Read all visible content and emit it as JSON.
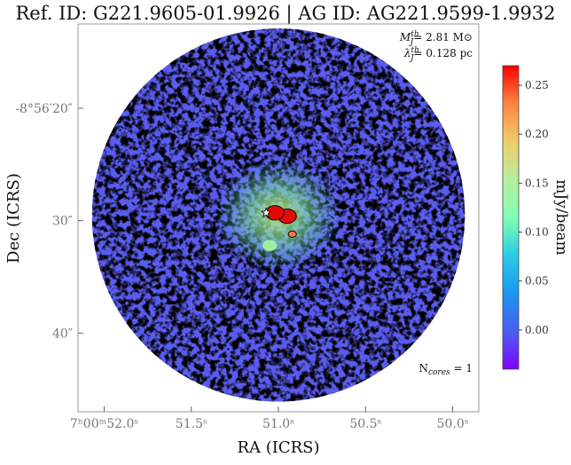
{
  "chart_data": {
    "type": "heatmap",
    "title": "Ref. ID: G221.9605-01.9926 | AG ID: AG221.9599-1.9932",
    "annotation": {
      "mass_label": "M",
      "mass_sup": "th",
      "mass_sub": "J",
      "mass_value": "= 2.81 M⊙",
      "length_label": "λ",
      "length_sup": "th",
      "length_sub": "J",
      "length_value": "= 0.128 pc",
      "ncores_label": "N",
      "ncores_sub": "cores",
      "ncores_value": " = 1"
    },
    "xlabel": "RA (ICRS)",
    "ylabel": "Dec (ICRS)",
    "x_ticks": [
      {
        "ra_sec": 52.0,
        "label": "7ʰ00ᵐ52.0ˢ"
      },
      {
        "ra_sec": 51.5,
        "label": "51.5ˢ"
      },
      {
        "ra_sec": 51.0,
        "label": "51.0ˢ"
      },
      {
        "ra_sec": 50.5,
        "label": "50.5ˢ"
      },
      {
        "ra_sec": 50.0,
        "label": "50.0ˢ"
      }
    ],
    "y_ticks": [
      {
        "dec_arcsec": 20,
        "label": "-8°56′20″"
      },
      {
        "dec_arcsec": 30,
        "label": "30″"
      },
      {
        "dec_arcsec": 40,
        "label": "40″"
      }
    ],
    "xlim_ra_sec": [
      52.15,
      49.85
    ],
    "ylim_dec_arcsec": [
      12.5,
      47.0
    ],
    "colorbar": {
      "label": "mJy/beam",
      "vmin": -0.04,
      "vmax": 0.27,
      "ticks": [
        0.0,
        0.05,
        0.1,
        0.15,
        0.2,
        0.25
      ],
      "tick_labels": [
        "0.00",
        "0.05",
        "0.10",
        "0.15",
        "0.20",
        "0.25"
      ],
      "colormap": "rainbow"
    },
    "map": {
      "shape": "circle",
      "center": {
        "ra_sec": 51.0,
        "dec_arcsec": 29.5
      },
      "radius_arcsec": 16.6,
      "background_level": 0.01
    },
    "sources": [
      {
        "ra_sec": 50.95,
        "dec_arcsec": 29.6,
        "peak": 0.27,
        "kind": "core"
      },
      {
        "ra_sec": 51.02,
        "dec_arcsec": 29.3,
        "peak": 0.26,
        "kind": "core"
      },
      {
        "ra_sec": 50.92,
        "dec_arcsec": 31.2,
        "peak": 0.22,
        "kind": "clump"
      },
      {
        "ra_sec": 51.05,
        "dec_arcsec": 32.2,
        "peak": 0.12,
        "kind": "diffuse"
      }
    ],
    "core_marker": {
      "ra_sec": 51.07,
      "dec_arcsec": 29.3,
      "symbol": "star"
    },
    "grid": false
  }
}
